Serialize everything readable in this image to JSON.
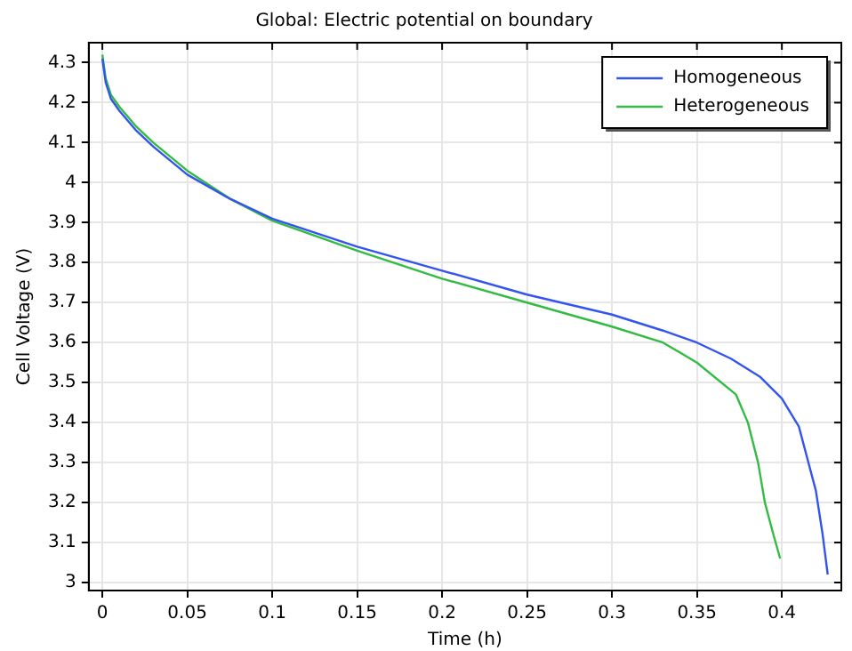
{
  "chart_data": {
    "type": "line",
    "title": "Global: Electric potential on boundary",
    "xlabel": "Time (h)",
    "ylabel": "Cell Voltage (V)",
    "xlim": [
      -0.008,
      0.435
    ],
    "xticks": [
      0,
      0.05,
      0.1,
      0.15,
      0.2,
      0.25,
      0.3,
      0.35,
      0.4
    ],
    "ylim": [
      2.98,
      4.35
    ],
    "yticks": [
      3,
      3.1,
      3.2,
      3.3,
      3.4,
      3.5,
      3.6,
      3.7,
      3.8,
      3.9,
      4,
      4.1,
      4.2,
      4.3
    ],
    "grid": true,
    "legend": "top right",
    "marker": "none",
    "line_style": "solid",
    "series": [
      {
        "name": "Homogeneous",
        "color": "#3355ee",
        "x": [
          0,
          0.002,
          0.005,
          0.01,
          0.02,
          0.03,
          0.05,
          0.075,
          0.1,
          0.15,
          0.2,
          0.25,
          0.3,
          0.33,
          0.35,
          0.37,
          0.387,
          0.4,
          0.41,
          0.42,
          0.424,
          0.427
        ],
        "values": [
          4.31,
          4.25,
          4.21,
          4.18,
          4.13,
          4.09,
          4.02,
          3.96,
          3.91,
          3.84,
          3.78,
          3.72,
          3.67,
          3.63,
          3.6,
          3.56,
          3.515,
          3.46,
          3.39,
          3.23,
          3.12,
          3.02
        ]
      },
      {
        "name": "Heterogeneous",
        "color": "#33bb44",
        "x": [
          0,
          0.002,
          0.005,
          0.01,
          0.02,
          0.03,
          0.05,
          0.075,
          0.1,
          0.15,
          0.2,
          0.25,
          0.3,
          0.33,
          0.35,
          0.373,
          0.38,
          0.386,
          0.39,
          0.395,
          0.399
        ],
        "values": [
          4.32,
          4.26,
          4.22,
          4.19,
          4.14,
          4.1,
          4.03,
          3.96,
          3.905,
          3.83,
          3.76,
          3.7,
          3.64,
          3.6,
          3.55,
          3.47,
          3.4,
          3.3,
          3.2,
          3.12,
          3.06
        ]
      }
    ]
  }
}
